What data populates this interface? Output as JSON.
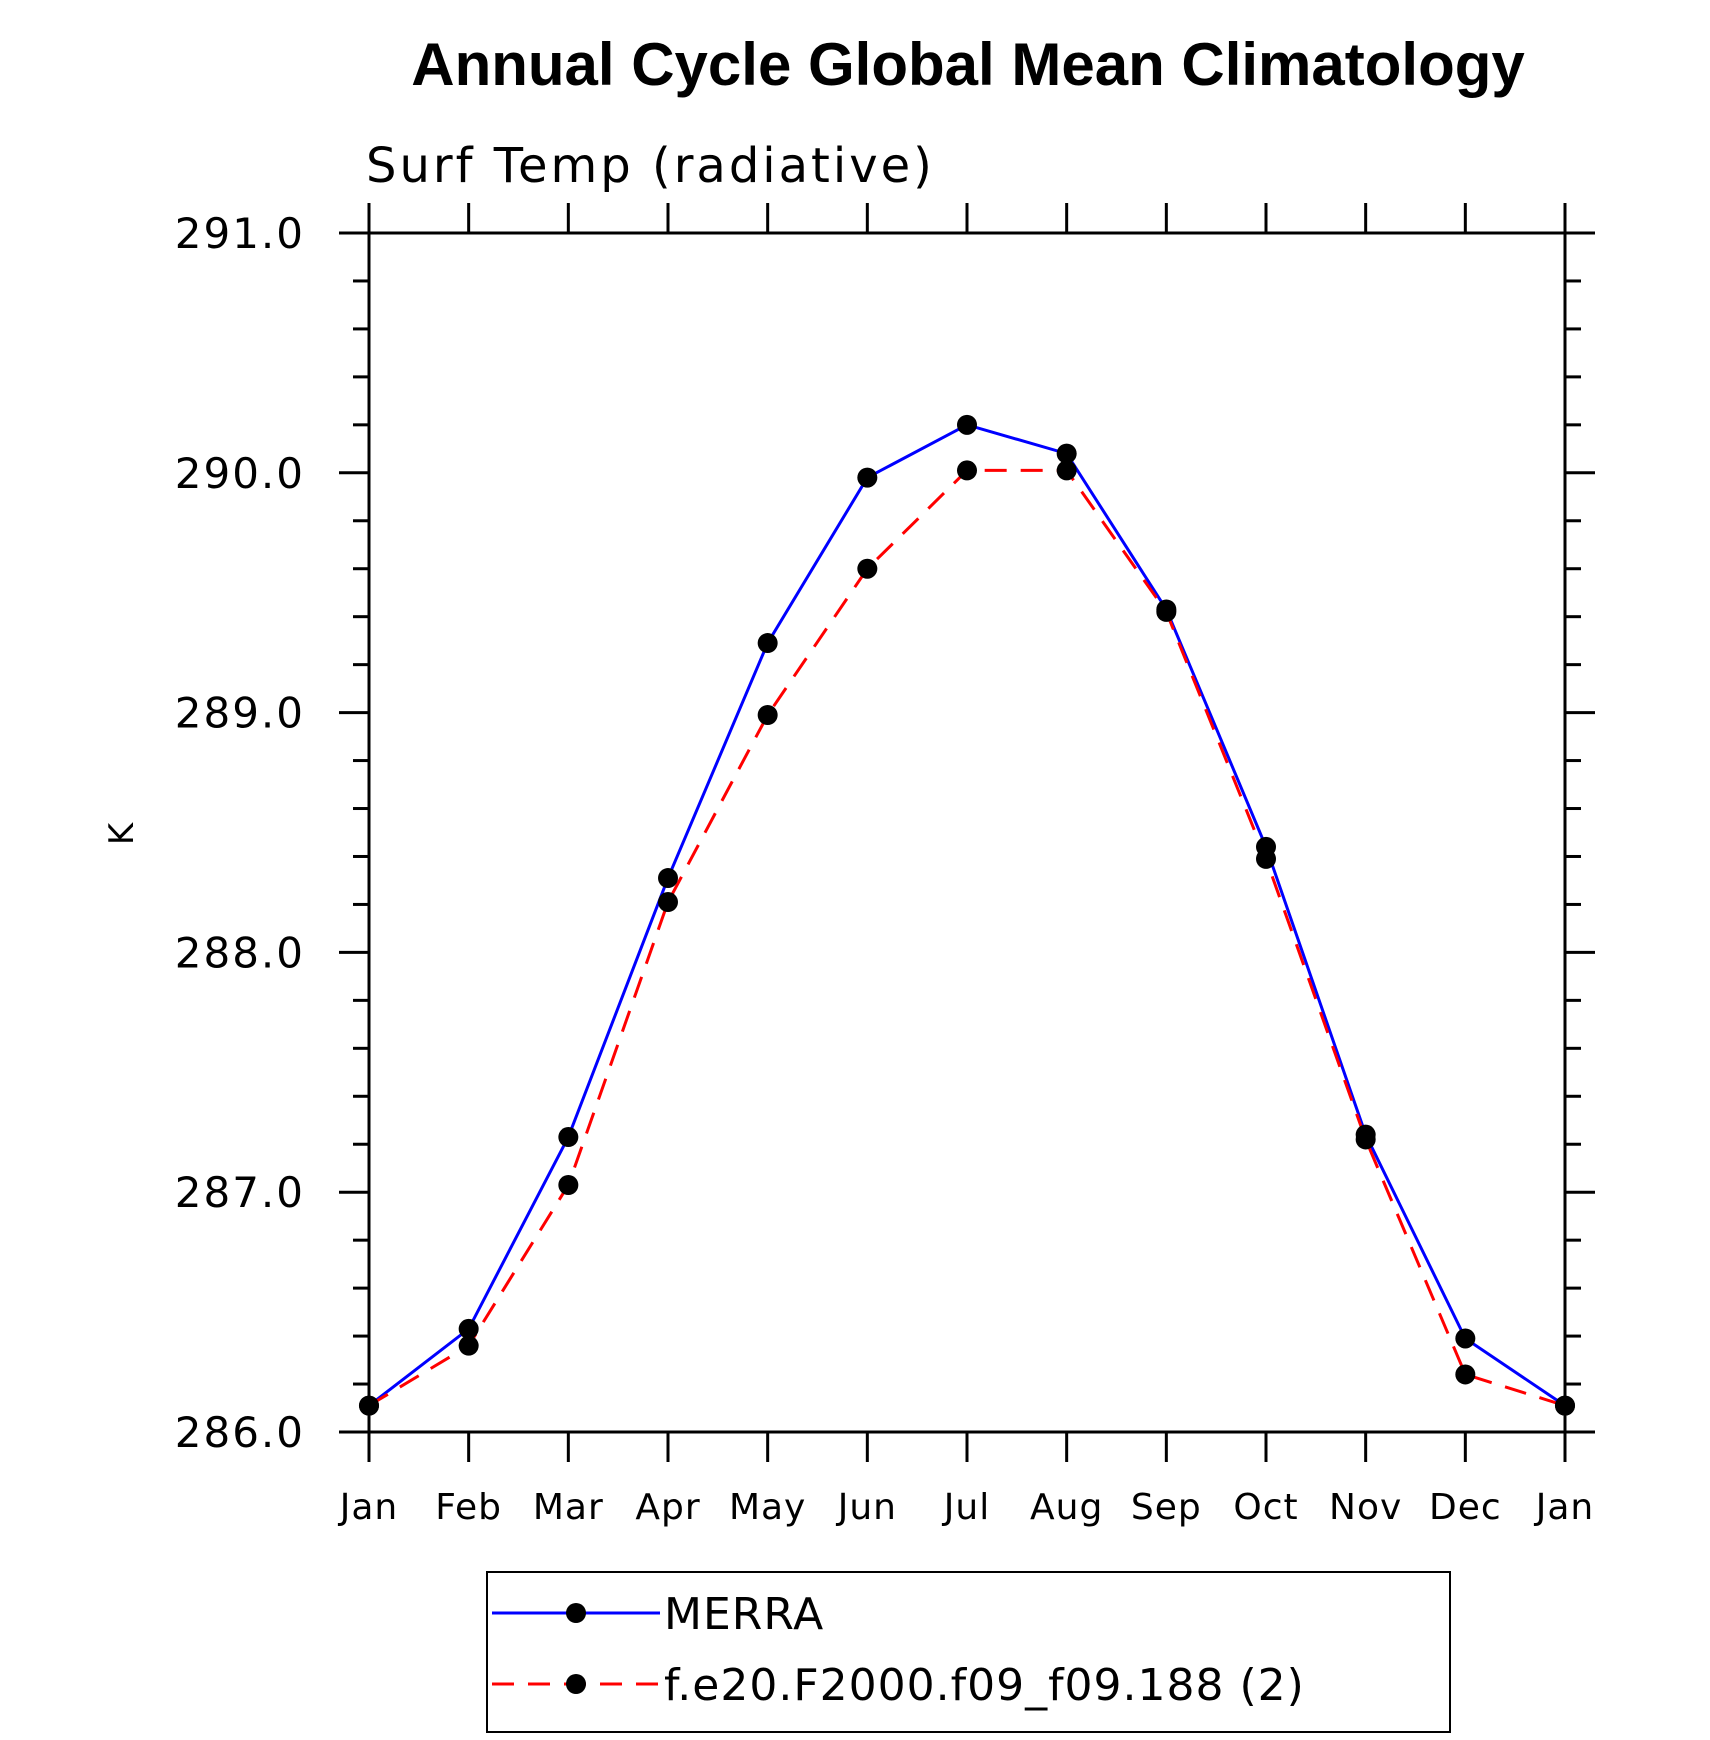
{
  "chart_data": {
    "type": "line",
    "title": "Annual Cycle Global Mean Climatology",
    "subtitle": "Surf Temp (radiative)",
    "xlabel": "",
    "ylabel": "K",
    "categories": [
      "Jan",
      "Feb",
      "Mar",
      "Apr",
      "May",
      "Jun",
      "Jul",
      "Aug",
      "Sep",
      "Oct",
      "Nov",
      "Dec",
      "Jan"
    ],
    "ylim": [
      286.0,
      291.0
    ],
    "yticks": [
      "286.0",
      "287.0",
      "288.0",
      "289.0",
      "290.0",
      "291.0"
    ],
    "grid": false,
    "legend_position": "bottom",
    "series": [
      {
        "name": "MERRA",
        "color": "#0000ff",
        "line_style": "solid",
        "marker": "filled-circle",
        "values": [
          286.11,
          286.43,
          287.23,
          288.31,
          289.29,
          289.98,
          290.2,
          290.08,
          289.43,
          288.44,
          287.24,
          286.39,
          286.11
        ]
      },
      {
        "name": "f.e20.F2000.f09_f09.188 (2)",
        "color": "#ff0000",
        "line_style": "dashed",
        "marker": "filled-circle",
        "values": [
          286.11,
          286.36,
          287.03,
          288.21,
          288.99,
          289.6,
          290.01,
          290.01,
          289.42,
          288.39,
          287.22,
          286.24,
          286.11
        ]
      }
    ]
  }
}
